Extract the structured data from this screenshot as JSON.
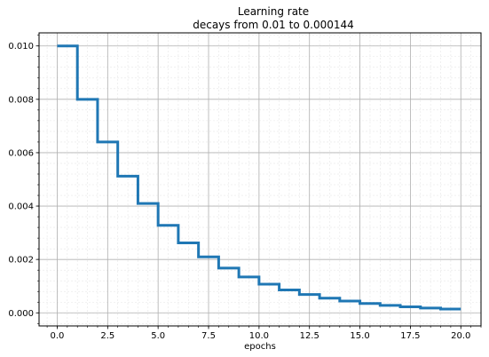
{
  "chart_data": {
    "type": "line",
    "step": "post",
    "title": "Learning rate",
    "subtitle": "decays from 0.01 to 0.000144",
    "xlabel": "epochs",
    "ylabel": "",
    "xlim": [
      -0.9,
      21.0
    ],
    "ylim": [
      -0.00049,
      0.01049
    ],
    "x_ticks": [
      0.0,
      2.5,
      5.0,
      7.5,
      10.0,
      12.5,
      15.0,
      17.5,
      20.0
    ],
    "x_tick_labels": [
      "0.0",
      "2.5",
      "5.0",
      "7.5",
      "10.0",
      "12.5",
      "15.0",
      "17.5",
      "20.0"
    ],
    "y_ticks": [
      0.0,
      0.002,
      0.004,
      0.006,
      0.008,
      0.01
    ],
    "y_tick_labels": [
      "0.000",
      "0.002",
      "0.004",
      "0.006",
      "0.008",
      "0.010"
    ],
    "grid": {
      "major": true,
      "minor": true
    },
    "color": "#1f77b4",
    "series": [
      {
        "x": [
          0,
          1,
          2,
          3,
          4,
          5,
          6,
          7,
          8,
          9,
          10,
          11,
          12,
          13,
          14,
          15,
          16,
          17,
          18,
          19,
          20
        ],
        "values": [
          0.01,
          0.008,
          0.0064,
          0.00512,
          0.004096,
          0.0032768,
          0.00262144,
          0.002097152,
          0.0016777216,
          0.00134217728,
          0.001073741824,
          0.000858993459,
          0.000687194767,
          0.000549755814,
          0.000439804651,
          0.000351843721,
          0.000281474977,
          0.000225179981,
          0.000180143985,
          0.000144115188,
          0.000144115188
        ]
      }
    ]
  }
}
